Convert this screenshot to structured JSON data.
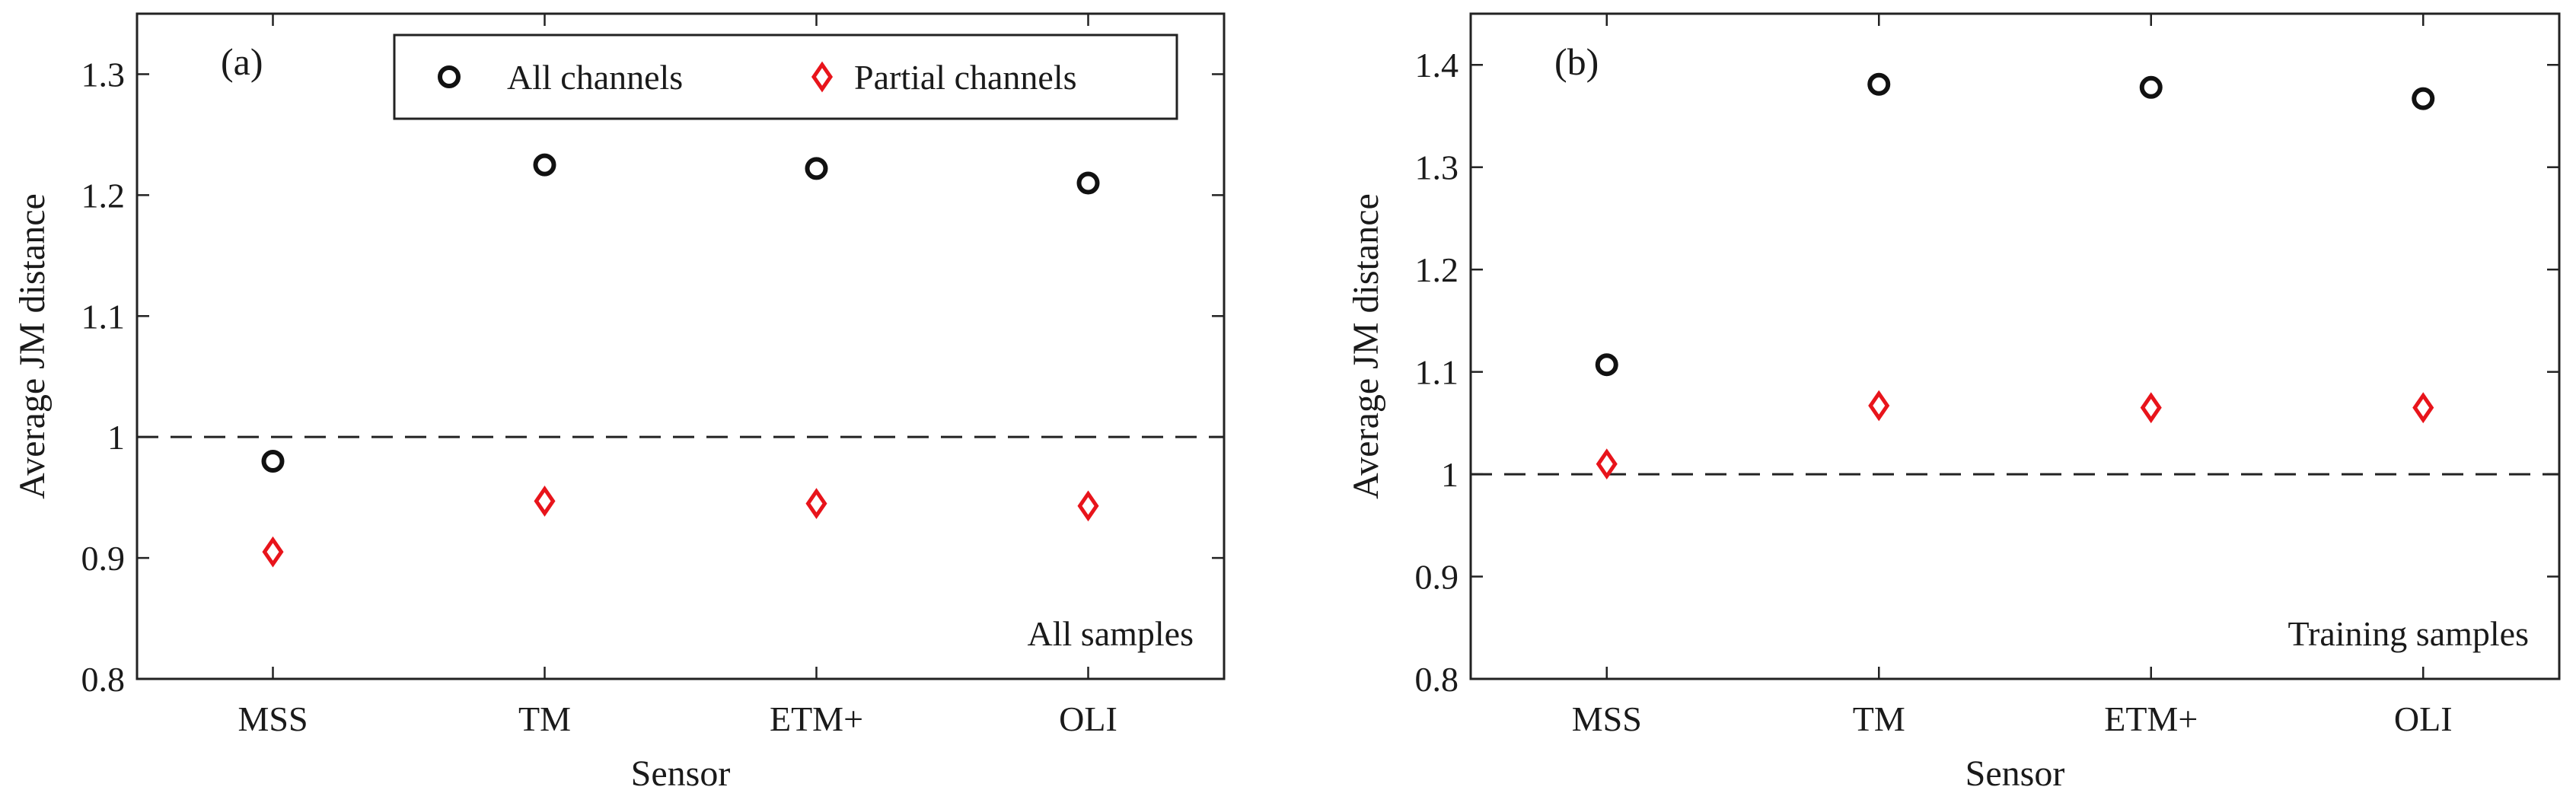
{
  "chart_data": [
    {
      "id": "a",
      "type": "scatter",
      "panel_label": "(a)",
      "xlabel": "Sensor",
      "ylabel": "Average JM distance",
      "categories": [
        "MSS",
        "TM",
        "ETM+",
        "OLI"
      ],
      "ylim": [
        0.8,
        1.35
      ],
      "yticks": [
        0.8,
        0.9,
        1.0,
        1.1,
        1.2,
        1.3
      ],
      "ytick_labels": [
        "0.8",
        "0.9",
        "1",
        "1.1",
        "1.2",
        "1.3"
      ],
      "reference_line": 1.0,
      "annotation": "All samples",
      "legend": {
        "placement": "top-right",
        "entries": [
          "All channels",
          "Partial channels"
        ]
      },
      "series": [
        {
          "name": "All channels",
          "marker": "circle",
          "color": "#111111",
          "values": [
            0.98,
            1.225,
            1.222,
            1.21
          ]
        },
        {
          "name": "Partial channels",
          "marker": "diamond",
          "color": "#e8141b",
          "values": [
            0.905,
            0.947,
            0.945,
            0.943
          ]
        }
      ]
    },
    {
      "id": "b",
      "type": "scatter",
      "panel_label": "(b)",
      "xlabel": "Sensor",
      "ylabel": "Average JM distance",
      "categories": [
        "MSS",
        "TM",
        "ETM+",
        "OLI"
      ],
      "ylim": [
        0.8,
        1.45
      ],
      "yticks": [
        0.8,
        0.9,
        1.0,
        1.1,
        1.2,
        1.3,
        1.4
      ],
      "ytick_labels": [
        "0.8",
        "0.9",
        "1",
        "1.1",
        "1.2",
        "1.3",
        "1.4"
      ],
      "reference_line": 1.0,
      "annotation": "Training samples",
      "series": [
        {
          "name": "All channels",
          "marker": "circle",
          "color": "#111111",
          "values": [
            1.107,
            1.381,
            1.378,
            1.367
          ]
        },
        {
          "name": "Partial channels",
          "marker": "diamond",
          "color": "#e8141b",
          "values": [
            1.01,
            1.067,
            1.065,
            1.065
          ]
        }
      ]
    }
  ]
}
